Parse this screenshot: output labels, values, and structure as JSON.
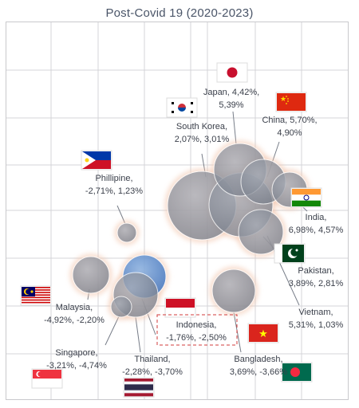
{
  "chart_data": {
    "type": "scatter",
    "title": "Post-Covid 19 (2020-2023)",
    "grid": true,
    "series": [
      {
        "country": "Japan",
        "line1": "Japan, 4,42%,",
        "line2": "5,39%",
        "x": 4.42,
        "y": 5.39,
        "flag": "japan-flag"
      },
      {
        "country": "China",
        "line1": "China, 5,70%,",
        "line2": "4,90%",
        "x": 5.7,
        "y": 4.9,
        "flag": "china-flag"
      },
      {
        "country": "South Korea",
        "line1": "South Korea,",
        "line2": "2,07%, 3,01%",
        "x": 2.07,
        "y": 3.01,
        "flag": "south-korea-flag"
      },
      {
        "country": "Phillipine",
        "line1": "Phillipine,",
        "line2": "-2,71%, 1,23%",
        "x": -2.71,
        "y": 1.23,
        "flag": "philippines-flag"
      },
      {
        "country": "India",
        "line1": "India,",
        "line2": "6,98%, 4,57%",
        "x": 6.98,
        "y": 4.57,
        "flag": "india-flag"
      },
      {
        "country": "Pakistan",
        "line1": "Pakistan,",
        "line2": "3,89%, 2,81%",
        "x": 3.89,
        "y": 2.81,
        "flag": "pakistan-flag"
      },
      {
        "country": "Vietnam",
        "line1": "Vietnam,",
        "line2": "5,31%, 1,03%",
        "x": 5.31,
        "y": 1.03,
        "flag": "vietnam-flag"
      },
      {
        "country": "Malaysia",
        "line1": "Malaysia,",
        "line2": "-4,92%, -2,20%",
        "x": -4.92,
        "y": -2.2,
        "flag": "malaysia-flag"
      },
      {
        "country": "Indonesia",
        "line1": "Indonesia,",
        "line2": "-1,76%, -2,50%",
        "x": -1.76,
        "y": -2.5,
        "flag": "indonesia-flag",
        "highlight": true
      },
      {
        "country": "Singapore",
        "line1": "Singapore,",
        "line2": "-3,21%, -4,74%",
        "x": -3.21,
        "y": -4.74,
        "flag": "singapore-flag"
      },
      {
        "country": "Thailand",
        "line1": "Thailand,",
        "line2": "-2,28%, -3,70%",
        "x": -2.28,
        "y": -3.7,
        "flag": "thailand-flag"
      },
      {
        "country": "Bangladesh",
        "line1": "Bangladesh,",
        "line2": "3,69%, -3,66%",
        "x": 3.69,
        "y": -3.66,
        "flag": "bangladesh-flag"
      }
    ],
    "colors": {
      "bubble": "#8a909c",
      "highlight_bubble": "#3f7fd0",
      "halo": "#f3c8b0",
      "grid": "#d4d4d8",
      "frame": "#c9c9cc",
      "leader": "#777d88"
    }
  }
}
